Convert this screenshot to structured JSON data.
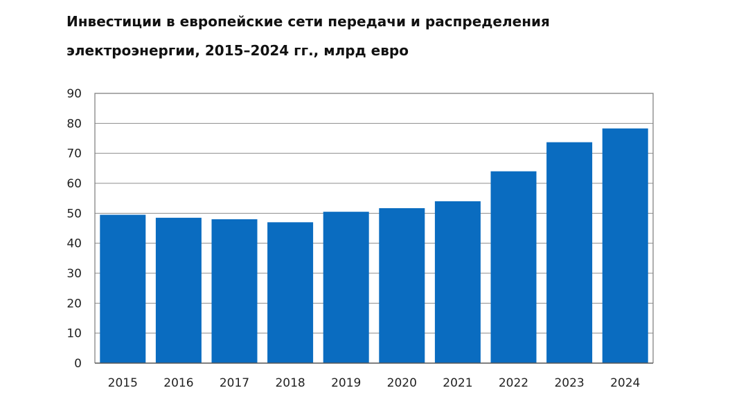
{
  "chart_data": {
    "type": "bar",
    "title_lines": [
      "Инвестиции в европейские сети передачи и распределения",
      "электроэнергии, 2015–2024 гг., млрд евро"
    ],
    "categories": [
      "2015",
      "2016",
      "2017",
      "2018",
      "2019",
      "2020",
      "2021",
      "2022",
      "2023",
      "2024"
    ],
    "values": [
      49.5,
      48.5,
      48,
      47,
      50.5,
      51.7,
      54,
      64,
      73.7,
      78.3
    ],
    "ylim": [
      0,
      90
    ],
    "yticks": [
      0,
      10,
      20,
      30,
      40,
      50,
      60,
      70,
      80,
      90
    ],
    "grid": true,
    "bar_color": "#0a6cc0",
    "grid_color": "#8c8c8c",
    "frame_color": "#7a7a7a"
  }
}
